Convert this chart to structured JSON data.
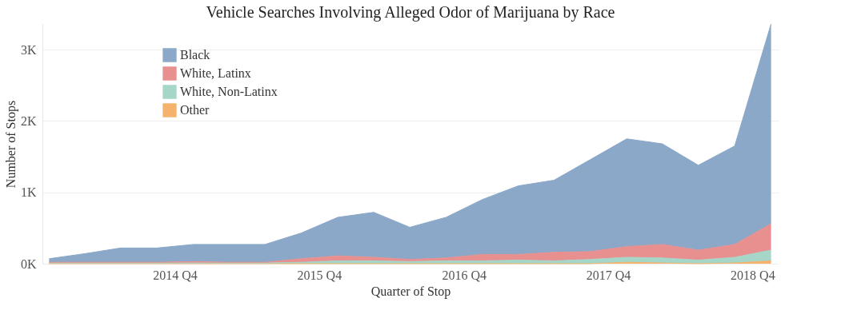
{
  "chart_data": {
    "type": "area",
    "title": "Vehicle Searches Involving Alleged Odor of Marijuana by Race",
    "xlabel": "Quarter of Stop",
    "ylabel": "Number of Stops",
    "stacked": true,
    "x": [
      "2014-01",
      "2014-04",
      "2014-07",
      "2014-10",
      "2015-01",
      "2015-04",
      "2015-07",
      "2015-10",
      "2016-01",
      "2016-04",
      "2016-07",
      "2016-10",
      "2017-01",
      "2017-04",
      "2017-07",
      "2017-10",
      "2018-01",
      "2018-04",
      "2018-07",
      "2018-10",
      "2019-01"
    ],
    "series": [
      {
        "name": "Other",
        "color": "#f4b26c",
        "values": [
          0,
          0,
          0,
          0,
          0,
          0,
          0,
          0,
          0,
          0,
          0,
          0,
          0,
          0,
          0,
          0,
          20,
          10,
          0,
          10,
          40
        ]
      },
      {
        "name": "White, Non-Latinx",
        "color": "#a5d6c8",
        "values": [
          10,
          10,
          10,
          10,
          10,
          10,
          10,
          20,
          40,
          40,
          30,
          40,
          40,
          50,
          40,
          60,
          70,
          70,
          50,
          80,
          150
        ]
      },
      {
        "name": "White, Latinx",
        "color": "#e8908f",
        "values": [
          10,
          10,
          10,
          10,
          20,
          10,
          10,
          50,
          70,
          50,
          30,
          40,
          90,
          80,
          120,
          110,
          150,
          190,
          140,
          180,
          370
        ]
      },
      {
        "name": "Black",
        "color": "#8ba8c8",
        "values": [
          50,
          120,
          200,
          200,
          240,
          250,
          250,
          360,
          540,
          630,
          450,
          570,
          770,
          960,
          1010,
          1290,
          1510,
          1410,
          1190,
          1380,
          2800
        ]
      }
    ],
    "xlim": [
      "2013-12-15",
      "2019-01-20"
    ],
    "xticks": [
      {
        "value": "2014-11-15",
        "label": "2014 Q4"
      },
      {
        "value": "2015-11-15",
        "label": "2015 Q4"
      },
      {
        "value": "2016-11-15",
        "label": "2016 Q4"
      },
      {
        "value": "2017-11-15",
        "label": "2017 Q4"
      },
      {
        "value": "2018-11-15",
        "label": "2018 Q4"
      }
    ],
    "yticks": [
      {
        "value": 0,
        "label": "0K"
      },
      {
        "value": 1000,
        "label": "1K"
      },
      {
        "value": 2000,
        "label": "2K"
      },
      {
        "value": 3000,
        "label": "3K"
      }
    ],
    "ylim": [
      0,
      3360
    ],
    "grid": "y",
    "legend": "top left"
  }
}
